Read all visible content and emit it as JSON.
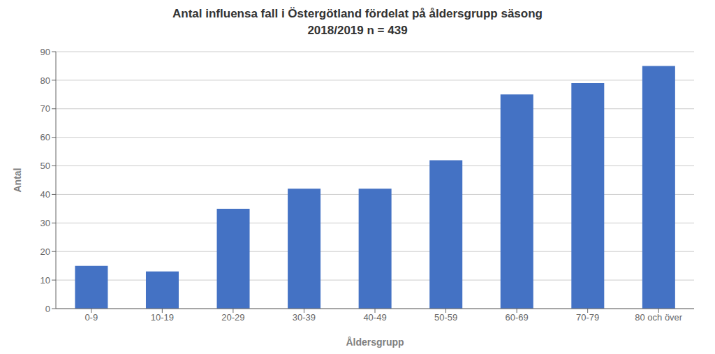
{
  "chart_data": {
    "type": "bar",
    "title": "Antal influensa fall i Östergötland fördelat på åldersgrupp säsong",
    "subtitle": "2018/2019  n = 439",
    "categories": [
      "0-9",
      "10-19",
      "20-29",
      "30-39",
      "40-49",
      "50-59",
      "60-69",
      "70-79",
      "80 och över"
    ],
    "values": [
      15,
      13,
      35,
      42,
      42,
      52,
      75,
      79,
      85
    ],
    "color": "#4472C4",
    "xlabel": "Åldersgrupp",
    "ylabel": "Antal",
    "ylim": [
      0,
      90
    ],
    "yticks": [
      0,
      10,
      20,
      30,
      40,
      50,
      60,
      70,
      80,
      90
    ],
    "grid": true
  }
}
